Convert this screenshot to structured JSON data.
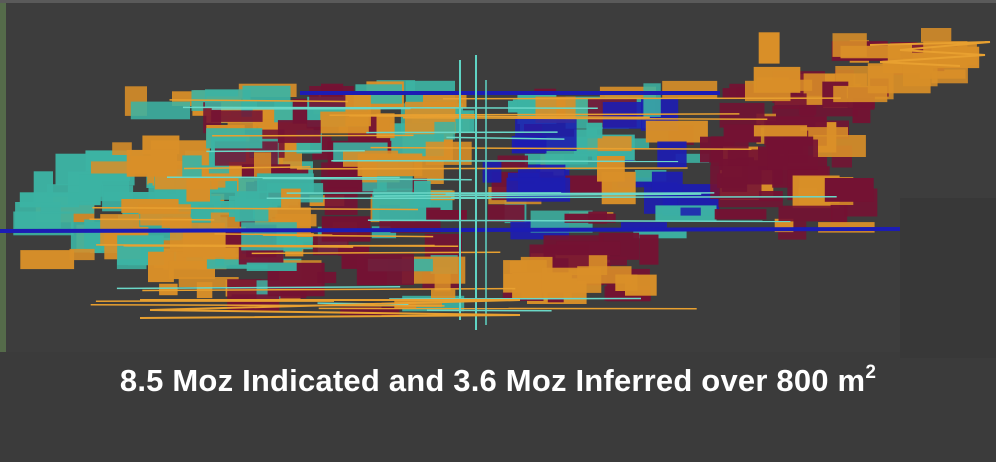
{
  "caption": {
    "text": "8.5 Moz Indicated and 3.6 Moz Inferred over 800 m",
    "superscript": "2"
  }
}
